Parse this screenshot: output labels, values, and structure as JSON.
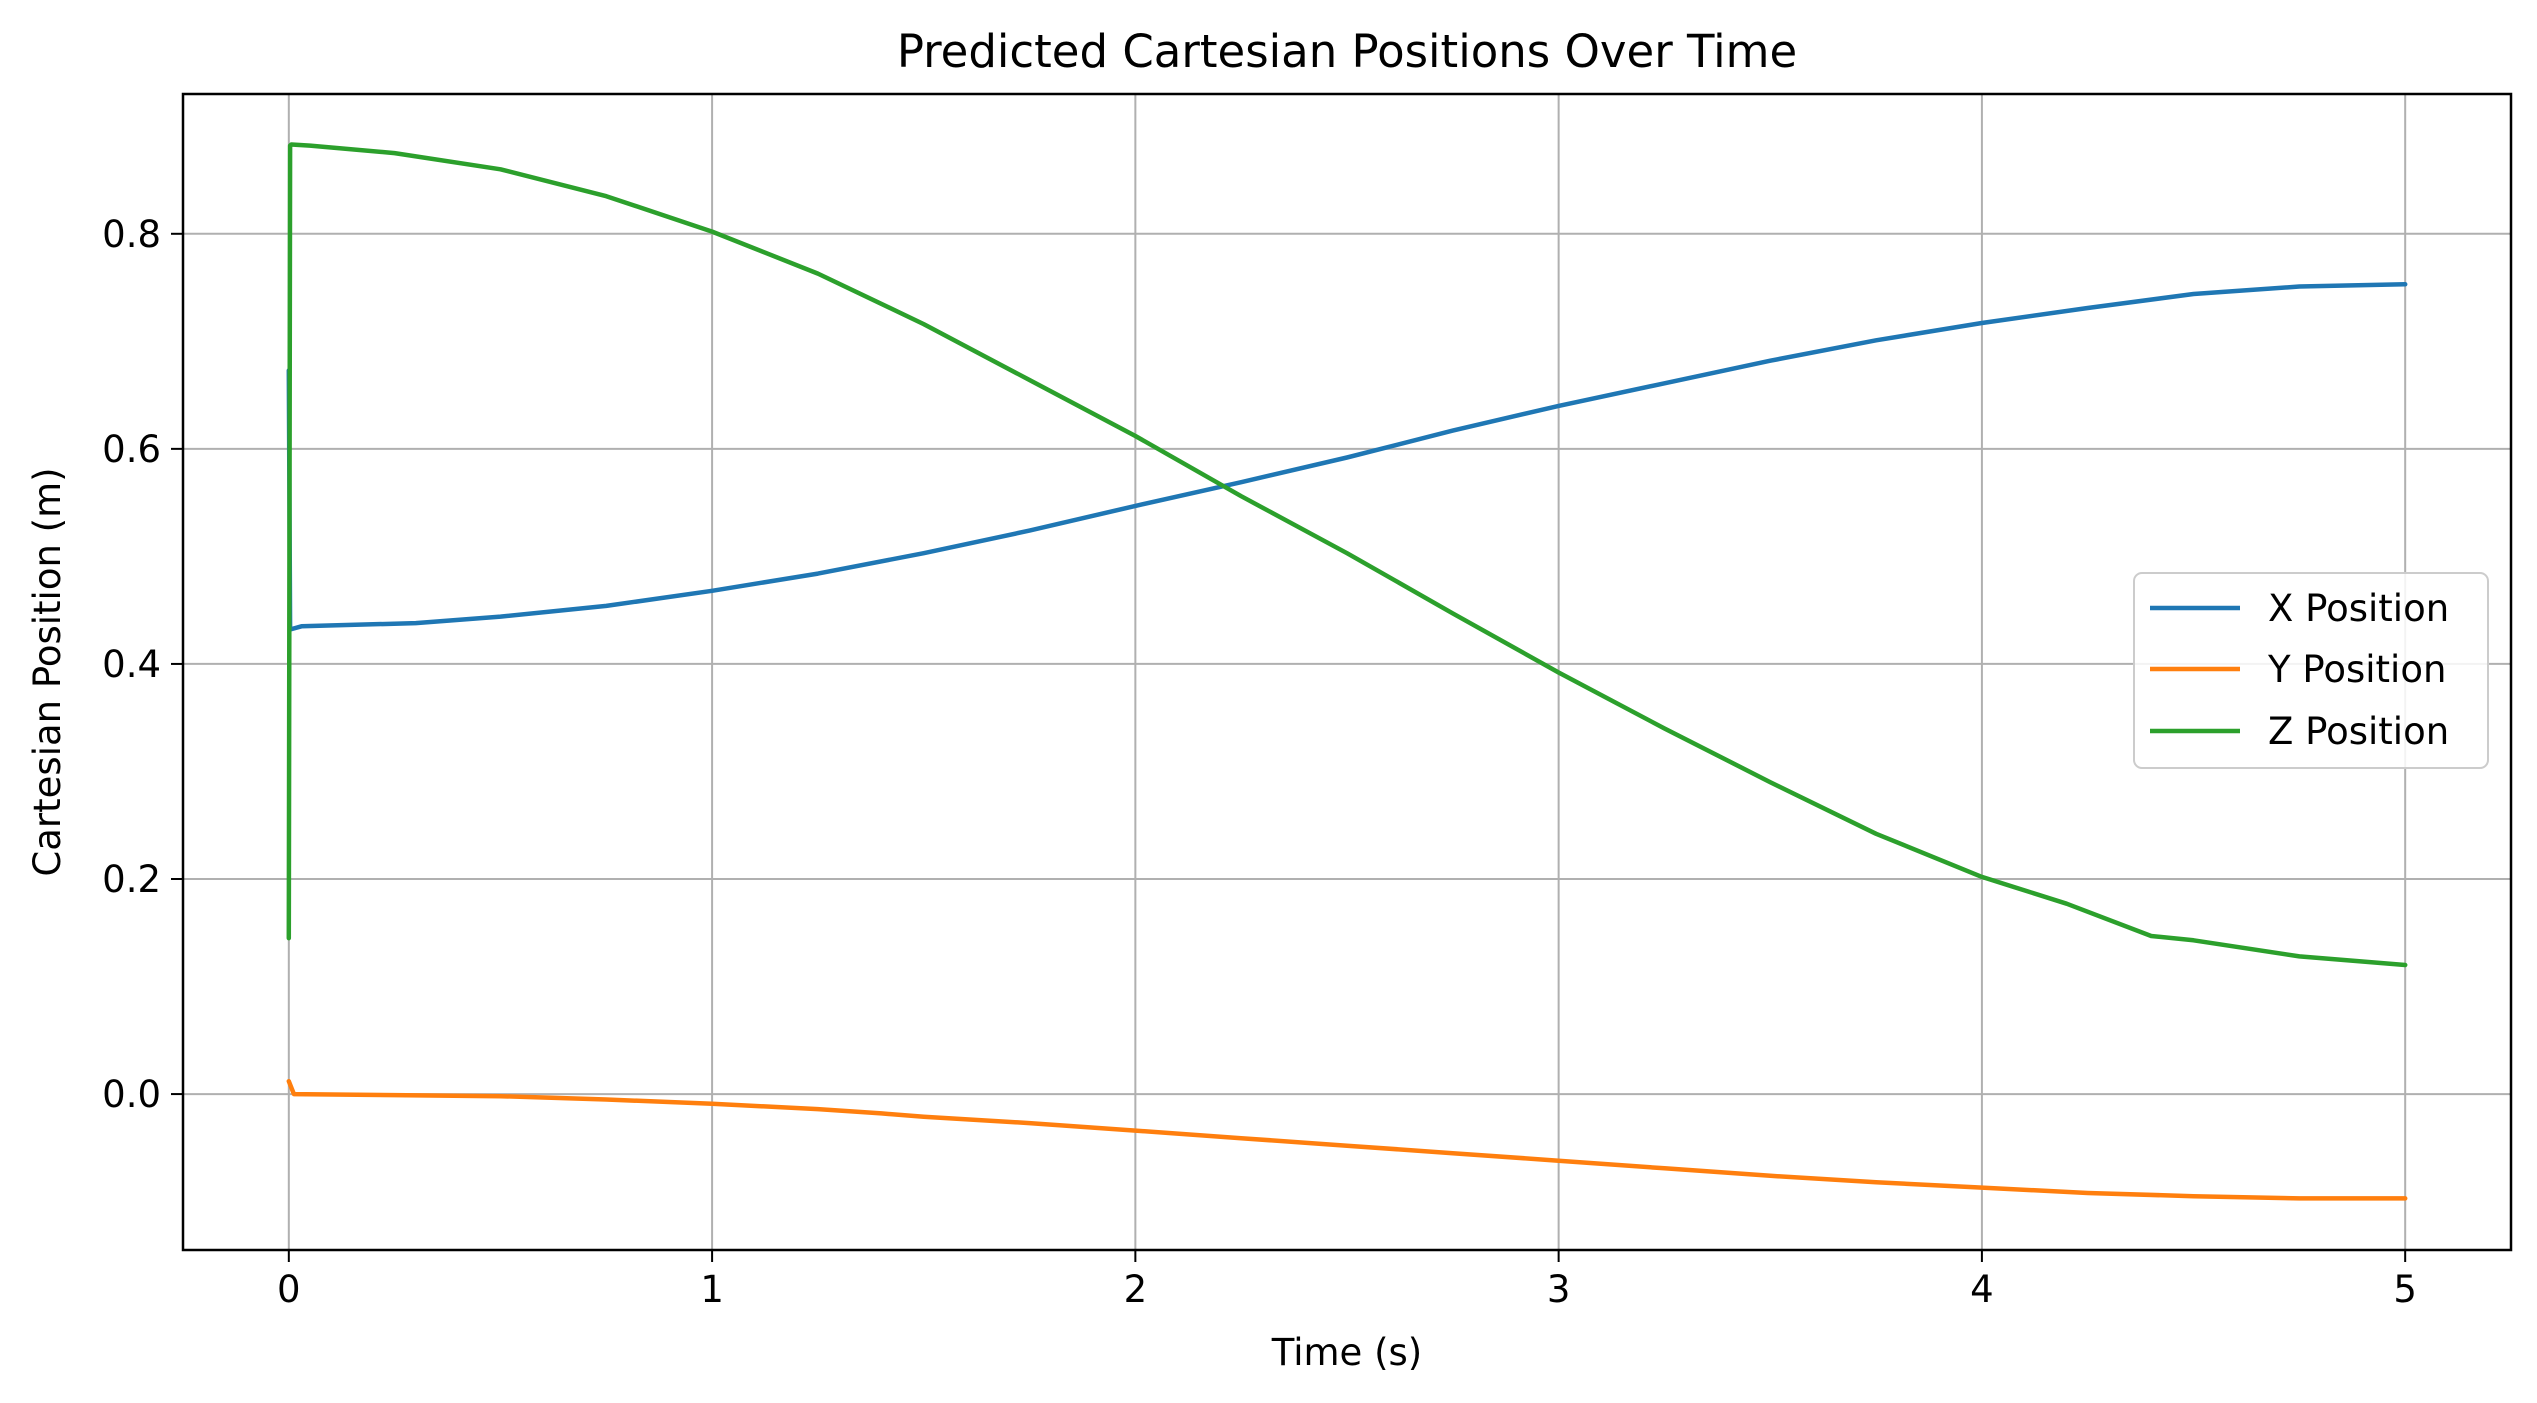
{
  "chart_data": {
    "type": "line",
    "title": "Predicted Cartesian Positions Over Time",
    "xlabel": "Time (s)",
    "ylabel": "Cartesian Position (m)",
    "xlim": [
      -0.25,
      5.25
    ],
    "ylim": [
      -0.145,
      0.93
    ],
    "xticks": [
      0,
      1,
      2,
      3,
      4,
      5
    ],
    "xtick_labels": [
      "0",
      "1",
      "2",
      "3",
      "4",
      "5"
    ],
    "yticks": [
      0.0,
      0.2,
      0.4,
      0.6,
      0.8
    ],
    "ytick_labels": [
      "0.0",
      "0.2",
      "0.4",
      "0.6",
      "0.8"
    ],
    "grid": true,
    "legend_position": "center-right",
    "series": [
      {
        "name": "X Position",
        "color": "#1f77b4",
        "x": [
          0,
          0.003,
          0.03,
          0.3,
          0.5,
          0.75,
          1.0,
          1.25,
          1.5,
          1.75,
          2.0,
          2.25,
          2.5,
          2.75,
          3.0,
          3.25,
          3.5,
          3.75,
          4.0,
          4.25,
          4.5,
          4.75,
          5.0
        ],
        "y": [
          0.673,
          0.432,
          0.435,
          0.438,
          0.444,
          0.454,
          0.468,
          0.484,
          0.503,
          0.524,
          0.547,
          0.569,
          0.592,
          0.617,
          0.64,
          0.661,
          0.682,
          0.701,
          0.717,
          0.731,
          0.744,
          0.751,
          0.753
        ]
      },
      {
        "name": "Y Position",
        "color": "#ff7f0e",
        "x": [
          0,
          0.012,
          0.25,
          0.5,
          0.75,
          1.0,
          1.25,
          1.4,
          1.5,
          1.75,
          2.0,
          2.25,
          2.5,
          2.75,
          3.0,
          3.25,
          3.5,
          3.75,
          4.0,
          4.25,
          4.5,
          4.75,
          5.0
        ],
        "y": [
          0.012,
          0.0,
          -0.001,
          -0.002,
          -0.005,
          -0.009,
          -0.014,
          -0.018,
          -0.021,
          -0.027,
          -0.034,
          -0.041,
          -0.048,
          -0.055,
          -0.062,
          -0.069,
          -0.076,
          -0.082,
          -0.087,
          -0.092,
          -0.095,
          -0.097,
          -0.097
        ]
      },
      {
        "name": "Z Position",
        "color": "#2ca02c",
        "x": [
          0,
          0.003,
          0.006,
          0.05,
          0.25,
          0.5,
          0.75,
          1.0,
          1.25,
          1.5,
          1.75,
          2.0,
          2.25,
          2.5,
          2.75,
          3.0,
          3.25,
          3.5,
          3.75,
          4.0,
          4.2,
          4.4,
          4.5,
          4.75,
          5.0
        ],
        "y": [
          0.145,
          0.882,
          0.883,
          0.882,
          0.875,
          0.86,
          0.835,
          0.802,
          0.763,
          0.716,
          0.664,
          0.612,
          0.556,
          0.503,
          0.447,
          0.392,
          0.34,
          0.29,
          0.242,
          0.202,
          0.177,
          0.147,
          0.143,
          0.128,
          0.12
        ]
      }
    ]
  }
}
